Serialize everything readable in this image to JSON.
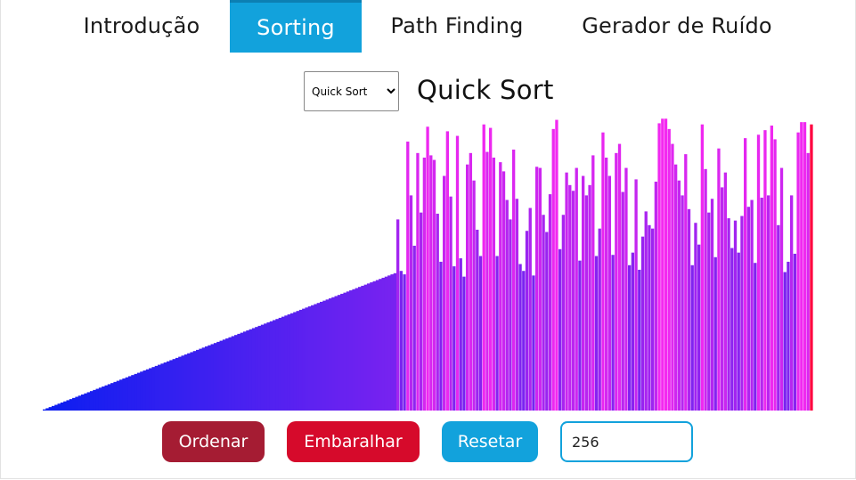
{
  "nav": {
    "tabs": [
      {
        "label": "Introdução",
        "active": false
      },
      {
        "label": "Sorting",
        "active": true
      },
      {
        "label": "Path Finding",
        "active": false
      },
      {
        "label": "Gerador de Ruído",
        "active": false
      }
    ]
  },
  "algorithm": {
    "selected": "Quick Sort",
    "title": "Quick Sort"
  },
  "controls": {
    "sort_label": "Ordenar",
    "shuffle_label": "Embaralhar",
    "reset_label": "Resetar",
    "size_value": "256"
  },
  "colors": {
    "accent": "#12a2dc",
    "sort_button": "#a51c33",
    "shuffle_button": "#d60a2b",
    "bar_low": "#0a1ef0",
    "bar_high": "#f528f0",
    "bar_active": "#ff0040"
  },
  "chart_data": {
    "type": "bar",
    "sorted_values": [
      1,
      2,
      3,
      4,
      5,
      6,
      7,
      8,
      9,
      10,
      11,
      12,
      13,
      14,
      15,
      16,
      17,
      18,
      19,
      20,
      21,
      22,
      23,
      24,
      25,
      26,
      27,
      28,
      29,
      30,
      31,
      32,
      33,
      34,
      35,
      36,
      37,
      38,
      39,
      40,
      41,
      42,
      43,
      44,
      45,
      46,
      47,
      48,
      49,
      50,
      51,
      52,
      53,
      54,
      55,
      56,
      57,
      58,
      59,
      60,
      61,
      62,
      63,
      64,
      65,
      66,
      67,
      68,
      69,
      70,
      71,
      72,
      73,
      74,
      75,
      76,
      77,
      78,
      79,
      80,
      81,
      82,
      83,
      84,
      85,
      86,
      87,
      88,
      89,
      90,
      91,
      92,
      93,
      94,
      95,
      96,
      97,
      98,
      99,
      100,
      101,
      102,
      103,
      104,
      105,
      106,
      107,
      108,
      109,
      110,
      111,
      112,
      113,
      114,
      115,
      116,
      117,
      118,
      119,
      120
    ],
    "unsorted_values": [
      167,
      122,
      119,
      235,
      188,
      144,
      225,
      173,
      221,
      248,
      223,
      219,
      172,
      130,
      205,
      244,
      187,
      126,
      240,
      133,
      117,
      215,
      225,
      201,
      158,
      135,
      250,
      226,
      247,
      221,
      135,
      217,
      209,
      184,
      167,
      228,
      185,
      128,
      122,
      157,
      177,
      118,
      213,
      212,
      171,
      156,
      189,
      246,
      254,
      141,
      171,
      208,
      197,
      192,
      212,
      131,
      205,
      188,
      197,
      223,
      135,
      159,
      243,
      221,
      205,
      136,
      225,
      233,
      191,
      212,
      127,
      138,
      202,
      123,
      152,
      174,
      162,
      159,
      200,
      251,
      255,
      255,
      246,
      233,
      215,
      201,
      188,
      224,
      176,
      127,
      164,
      145,
      250,
      211,
      173,
      185,
      134,
      229,
      195,
      208,
      168,
      142,
      166,
      138,
      170,
      238,
      178,
      184,
      129,
      241,
      186,
      245,
      188,
      249,
      237,
      162,
      212,
      121,
      130,
      188,
      137,
      243,
      252,
      252,
      225
    ],
    "active_values": [
      250
    ],
    "max_value": 256
  }
}
